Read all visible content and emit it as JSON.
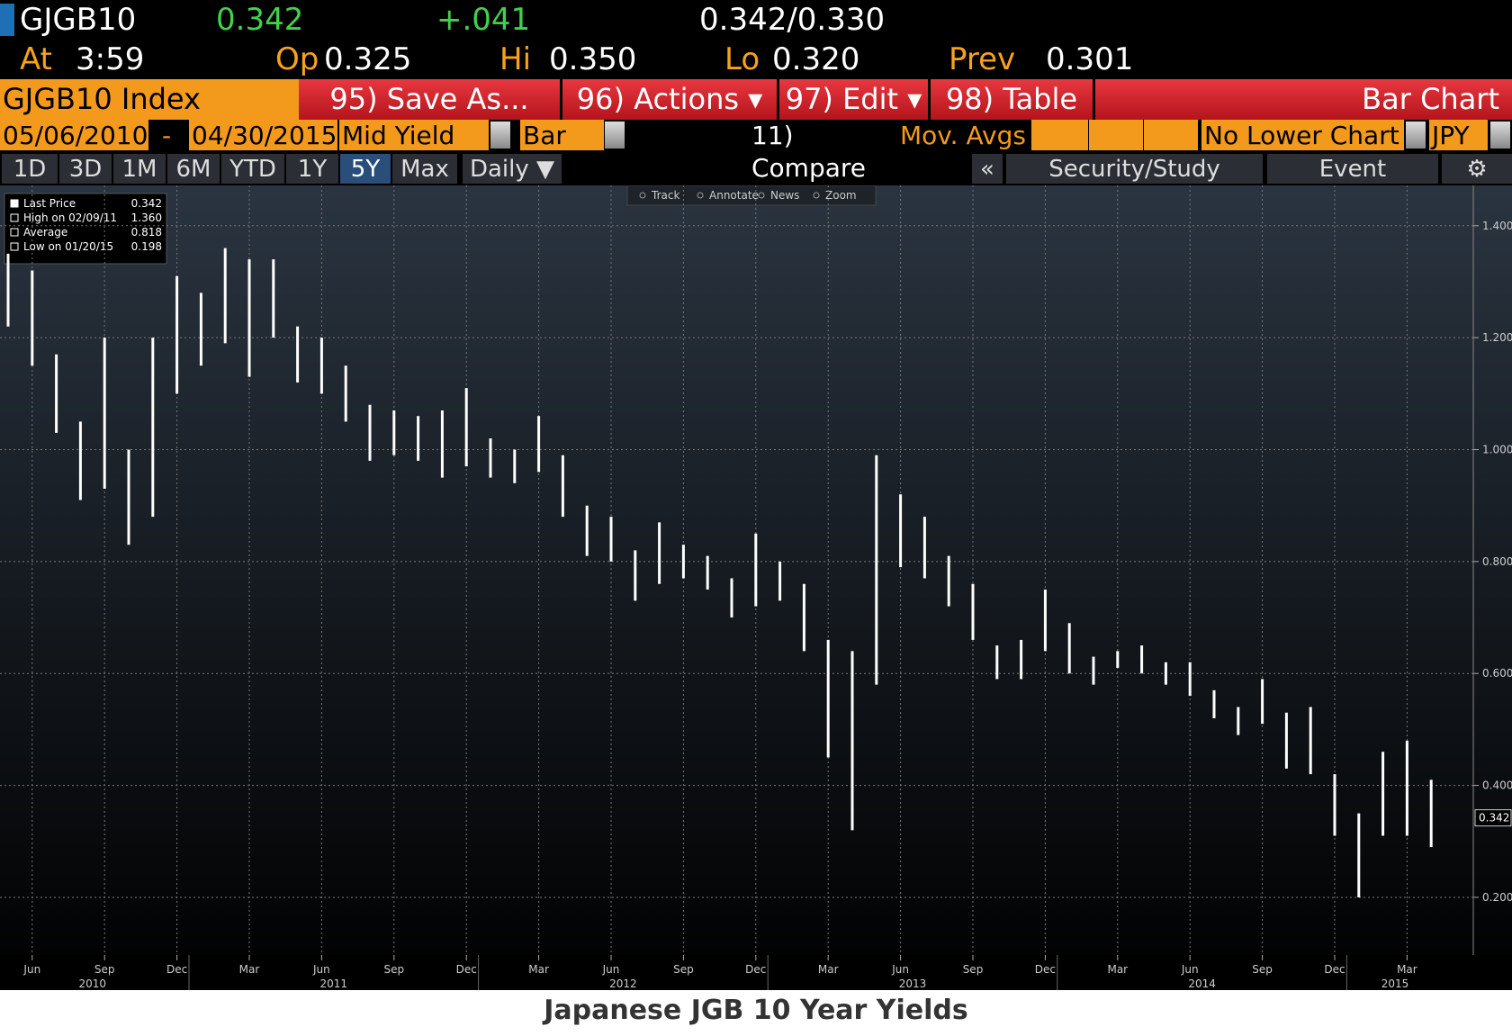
{
  "header": {
    "symbol": "GJGB10",
    "last": "0.342",
    "change": "+.041",
    "bid_ask": "0.342/0.330",
    "quote": [
      {
        "label": "At",
        "value": "3:59"
      },
      {
        "label": "Op",
        "value": "0.325"
      },
      {
        "label": "Hi",
        "value": "0.350"
      },
      {
        "label": "Lo",
        "value": "0.320"
      },
      {
        "label": "Prev",
        "value": "0.301"
      }
    ]
  },
  "toolbar": {
    "security": "GJGB10 Index",
    "buttons": [
      "95) Save As...",
      "96) Actions ▾",
      "97) Edit ▾",
      "98) Table"
    ],
    "view": "Bar Chart"
  },
  "settings": {
    "start": "05/06/2010",
    "dash": "-",
    "end": "04/30/2015",
    "field": "Mid Yield",
    "style": "Bar",
    "compare": "11) Compare",
    "mov_avgs": "Mov. Avgs",
    "lower": "No Lower Chart",
    "currency": "JPY"
  },
  "periods": {
    "items": [
      "1D",
      "3D",
      "1M",
      "6M",
      "YTD",
      "1Y",
      "5Y",
      "Max"
    ],
    "selected": 6,
    "frequency": "Daily ▼",
    "collapse": "«",
    "study": "Security/Study",
    "event": "Event"
  },
  "tools": [
    "Track",
    "Annotate",
    "News",
    "Zoom"
  ],
  "legend": [
    [
      "Last Price",
      "0.342"
    ],
    [
      "High on 02/09/11",
      "1.360"
    ],
    [
      "Average",
      "0.818"
    ],
    [
      "Low on 01/20/15",
      "0.198"
    ]
  ],
  "caption": "Japanese JGB 10 Year Yields",
  "chart_data": {
    "type": "range-bar",
    "color": "#ffffff",
    "categories": [
      "2010-05",
      "2010-06",
      "2010-07",
      "2010-08",
      "2010-09",
      "2010-10",
      "2010-11",
      "2010-12",
      "2011-01",
      "2011-02",
      "2011-03",
      "2011-04",
      "2011-05",
      "2011-06",
      "2011-07",
      "2011-08",
      "2011-09",
      "2011-10",
      "2011-11",
      "2011-12",
      "2012-01",
      "2012-02",
      "2012-03",
      "2012-04",
      "2012-05",
      "2012-06",
      "2012-07",
      "2012-08",
      "2012-09",
      "2012-10",
      "2012-11",
      "2012-12",
      "2013-01",
      "2013-02",
      "2013-03",
      "2013-04",
      "2013-05",
      "2013-06",
      "2013-07",
      "2013-08",
      "2013-09",
      "2013-10",
      "2013-11",
      "2013-12",
      "2014-01",
      "2014-02",
      "2014-03",
      "2014-04",
      "2014-05",
      "2014-06",
      "2014-07",
      "2014-08",
      "2014-09",
      "2014-10",
      "2014-11",
      "2014-12",
      "2015-01",
      "2015-02",
      "2015-03",
      "2015-04"
    ],
    "low": [
      1.22,
      1.15,
      1.03,
      0.91,
      0.93,
      0.83,
      0.88,
      1.1,
      1.15,
      1.19,
      1.13,
      1.2,
      1.12,
      1.1,
      1.05,
      0.98,
      0.99,
      0.98,
      0.95,
      0.97,
      0.95,
      0.94,
      0.96,
      0.88,
      0.81,
      0.8,
      0.73,
      0.76,
      0.77,
      0.75,
      0.7,
      0.72,
      0.73,
      0.64,
      0.45,
      0.32,
      0.58,
      0.79,
      0.77,
      0.72,
      0.66,
      0.59,
      0.59,
      0.64,
      0.6,
      0.58,
      0.61,
      0.6,
      0.58,
      0.56,
      0.52,
      0.49,
      0.51,
      0.43,
      0.42,
      0.31,
      0.2,
      0.31,
      0.31,
      0.29
    ],
    "high": [
      1.35,
      1.32,
      1.17,
      1.05,
      1.2,
      1.0,
      1.2,
      1.31,
      1.28,
      1.36,
      1.34,
      1.34,
      1.22,
      1.2,
      1.15,
      1.08,
      1.07,
      1.06,
      1.07,
      1.11,
      1.02,
      1.0,
      1.06,
      0.99,
      0.9,
      0.88,
      0.82,
      0.87,
      0.83,
      0.81,
      0.77,
      0.85,
      0.8,
      0.76,
      0.66,
      0.64,
      0.99,
      0.92,
      0.88,
      0.81,
      0.76,
      0.65,
      0.66,
      0.75,
      0.69,
      0.63,
      0.64,
      0.65,
      0.62,
      0.62,
      0.57,
      0.54,
      0.59,
      0.53,
      0.54,
      0.42,
      0.35,
      0.46,
      0.48,
      0.41
    ],
    "last_value": 0.342,
    "ylim": [
      0.097,
      1.472
    ],
    "yticks": [
      {
        "value": 0.2,
        "label": "0.200"
      },
      {
        "value": 0.4,
        "label": "0.400"
      },
      {
        "value": 0.6,
        "label": "0.600"
      },
      {
        "value": 0.8,
        "label": "0.800"
      },
      {
        "value": 1.0,
        "label": "1.000"
      },
      {
        "value": 1.2,
        "label": "1.200"
      },
      {
        "value": 1.4,
        "label": "1.400"
      }
    ],
    "xticks": [
      {
        "value": "2010-06",
        "label": "Jun"
      },
      {
        "value": "2010-09",
        "label": "Sep"
      },
      {
        "value": "2010-12",
        "label": "Dec"
      },
      {
        "value": "2011-03",
        "label": "Mar"
      },
      {
        "value": "2011-06",
        "label": "Jun"
      },
      {
        "value": "2011-09",
        "label": "Sep"
      },
      {
        "value": "2011-12",
        "label": "Dec"
      },
      {
        "value": "2012-03",
        "label": "Mar"
      },
      {
        "value": "2012-06",
        "label": "Jun"
      },
      {
        "value": "2012-09",
        "label": "Sep"
      },
      {
        "value": "2012-12",
        "label": "Dec"
      },
      {
        "value": "2013-03",
        "label": "Mar"
      },
      {
        "value": "2013-06",
        "label": "Jun"
      },
      {
        "value": "2013-09",
        "label": "Sep"
      },
      {
        "value": "2013-12",
        "label": "Dec"
      },
      {
        "value": "2014-03",
        "label": "Mar"
      },
      {
        "value": "2014-06",
        "label": "Jun"
      },
      {
        "value": "2014-09",
        "label": "Sep"
      },
      {
        "value": "2014-12",
        "label": "Dec"
      },
      {
        "value": "2015-03",
        "label": "Mar"
      }
    ],
    "years": [
      "2010",
      "2011",
      "2012",
      "2013",
      "2014",
      "2015"
    ],
    "grid": true
  }
}
